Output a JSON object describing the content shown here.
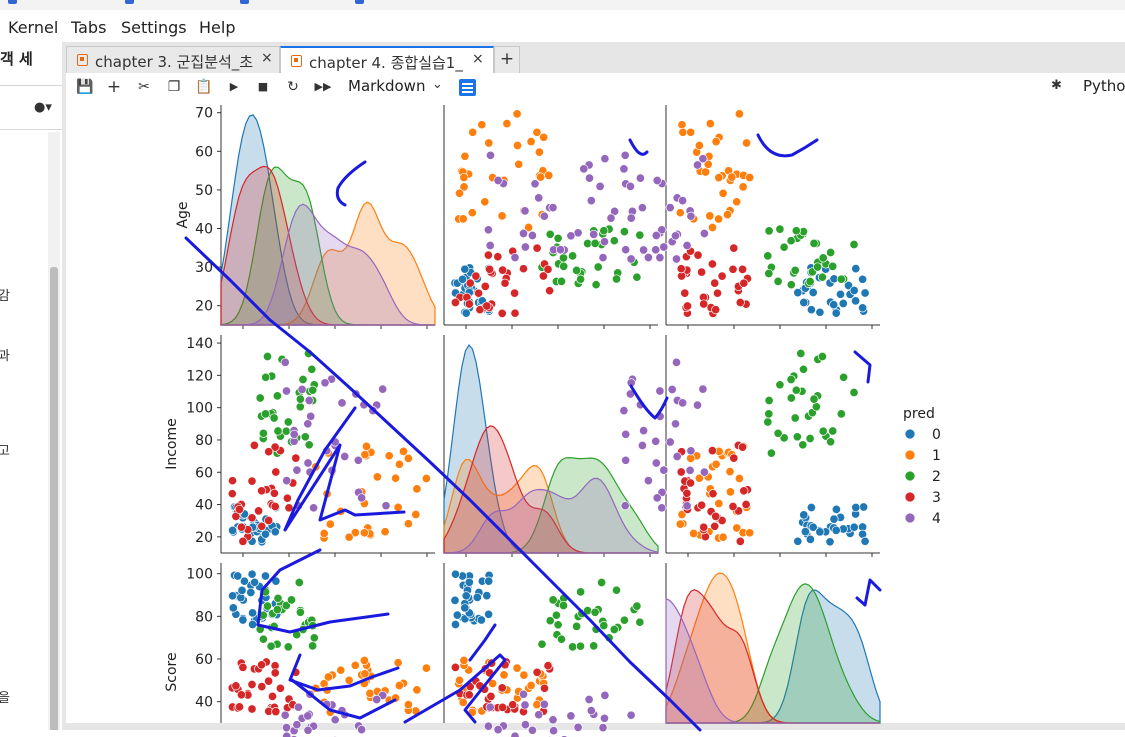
{
  "menu": [
    "Kernel",
    "Tabs",
    "Settings",
    "Help"
  ],
  "left_panel": {
    "header": "객 세",
    "fragments": [
      {
        "text": "감",
        "y": 285
      },
      {
        "text": "과",
        "y": 345
      },
      {
        "text": "고",
        "y": 440
      },
      {
        "text": "을",
        "y": 687
      }
    ]
  },
  "tabs": [
    {
      "label": "chapter 3. 군집분석_초",
      "close": "×",
      "active": false
    },
    {
      "label": "chapter 4. 종합실습1_",
      "close": "×",
      "active": true
    }
  ],
  "tab_add": "+",
  "toolbar": {
    "cell_type": "Markdown",
    "kernel": "Pytho"
  },
  "colors": {
    "0": "#1f77b4",
    "1": "#ff7f0e",
    "2": "#2ca02c",
    "3": "#d62728",
    "4": "#9467bd",
    "annotation": "#1a1adf"
  },
  "chart_data": {
    "type": "scatter",
    "variables": [
      "Age",
      "Income",
      "Score"
    ],
    "legend": {
      "title": "pred",
      "classes": [
        "0",
        "1",
        "2",
        "3",
        "4"
      ]
    },
    "ticks": {
      "Age": [
        "70",
        "60",
        "50",
        "40",
        "30",
        "20"
      ],
      "Income": [
        "140",
        "120",
        "100",
        "80",
        "60",
        "40",
        "20"
      ],
      "Score": [
        "100",
        "80",
        "60",
        "40"
      ]
    },
    "clusters": [
      {
        "pred": "0",
        "age": [
          18,
          30
        ],
        "income": [
          15,
          40
        ],
        "score": [
          75,
          100
        ]
      },
      {
        "pred": "1",
        "age": [
          40,
          70
        ],
        "income": [
          18,
          78
        ],
        "score": [
          35,
          60
        ]
      },
      {
        "pred": "2",
        "age": [
          25,
          40
        ],
        "income": [
          70,
          137
        ],
        "score": [
          65,
          97
        ]
      },
      {
        "pred": "3",
        "age": [
          18,
          35
        ],
        "income": [
          17,
          78
        ],
        "score": [
          35,
          60
        ]
      },
      {
        "pred": "4",
        "age": [
          32,
          59
        ],
        "income": [
          38,
          130
        ],
        "score": [
          15,
          45
        ]
      }
    ],
    "axes_ranges": {
      "Age": [
        15,
        72
      ],
      "Income": [
        10,
        145
      ],
      "Score": [
        30,
        105
      ]
    }
  }
}
